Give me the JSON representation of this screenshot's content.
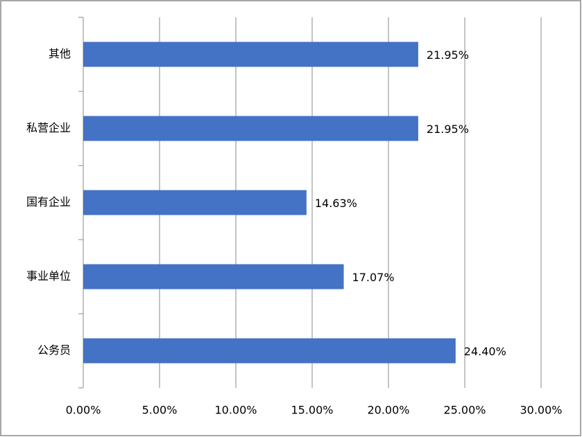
{
  "chart_data": {
    "type": "bar",
    "orientation": "horizontal",
    "categories": [
      "其他",
      "私营企业",
      "国有企业",
      "事业单位",
      "公务员"
    ],
    "values": [
      21.95,
      21.95,
      14.63,
      17.07,
      24.4
    ],
    "value_labels": [
      "21.95%",
      "21.95%",
      "14.63%",
      "17.07%",
      "24.40%"
    ],
    "color": "#4472c4",
    "xlim": [
      0,
      30
    ],
    "xticks": [
      {
        "value": 0,
        "label": "0.00%"
      },
      {
        "value": 5,
        "label": "5.00%"
      },
      {
        "value": 10,
        "label": "10.00%"
      },
      {
        "value": 15,
        "label": "15.00%"
      },
      {
        "value": 20,
        "label": "20.00%"
      },
      {
        "value": 25,
        "label": "25.00%"
      },
      {
        "value": 30,
        "label": "30.00%"
      }
    ],
    "grid": true
  }
}
